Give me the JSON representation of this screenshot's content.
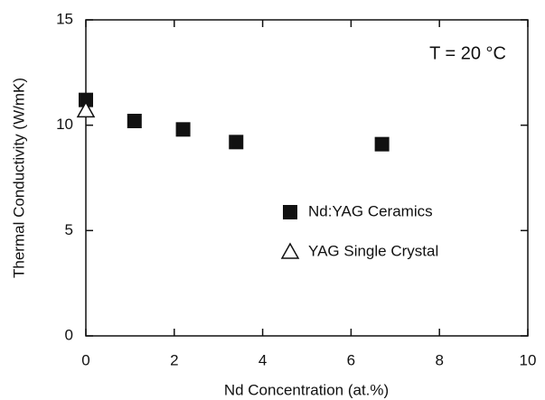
{
  "chart_data": {
    "type": "scatter",
    "x_label": "Nd Concentration  (at.%)",
    "y_label": "Thermal Conductivity  (W/mK)",
    "annotation": "T = 20 °C",
    "xlim": [
      0,
      10
    ],
    "xticks": [
      0,
      2,
      4,
      6,
      8,
      10
    ],
    "ylim": [
      0,
      15
    ],
    "yticks": [
      0,
      5,
      10,
      15
    ],
    "legend": "right",
    "series": [
      {
        "name": "Nd:YAG Ceramics",
        "color": "#111111",
        "marker": "filled-square",
        "x": [
          0,
          1.1,
          2.2,
          3.4,
          6.7
        ],
        "values": [
          11.2,
          10.2,
          9.8,
          9.2,
          9.1
        ]
      },
      {
        "name": "YAG Single Crystal",
        "color": "#111111",
        "marker": "open-triangle",
        "x": [
          0
        ],
        "values": [
          10.7
        ]
      }
    ]
  }
}
